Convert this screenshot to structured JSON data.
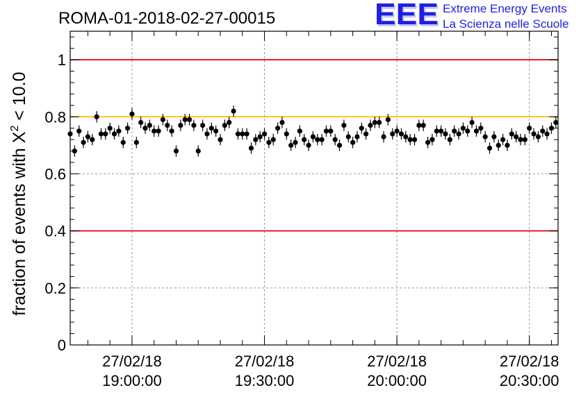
{
  "chart_data": {
    "type": "scatter",
    "title": "ROMA-01-2018-02-27-00015",
    "ylabel": "fraction of events with",
    "ylabel_math": {
      "symbol": "X",
      "superscript": "2",
      "suffix": " < 10.0"
    },
    "xlabel": "",
    "ylim": [
      0,
      1.1
    ],
    "y_ticks": [
      "0",
      "0.2",
      "0.4",
      "0.6",
      "0.8",
      "1"
    ],
    "x_ticks": [
      {
        "date": "27/02/18",
        "time": "19:00:00"
      },
      {
        "date": "27/02/18",
        "time": "19:30:00"
      },
      {
        "date": "27/02/18",
        "time": "20:00:00"
      },
      {
        "date": "27/02/18",
        "time": "20:30:00"
      }
    ],
    "x_time_range": [
      "18:46:00",
      "20:36:30"
    ],
    "x_tick_times": [
      "19:00:00",
      "19:30:00",
      "20:00:00",
      "20:30:00"
    ],
    "reference_lines": [
      {
        "y": 1.0,
        "color": "#e00000"
      },
      {
        "y": 0.8,
        "color": "#ffbb00"
      },
      {
        "y": 0.4,
        "color": "#e00000"
      }
    ],
    "grid": true,
    "marker_color": "#000000",
    "x": [
      "18:46:00",
      "18:47:00",
      "18:48:00",
      "18:49:00",
      "18:50:00",
      "18:51:00",
      "18:52:00",
      "18:53:00",
      "18:54:00",
      "18:55:00",
      "18:56:00",
      "18:57:00",
      "18:58:00",
      "18:59:00",
      "19:00:00",
      "19:01:00",
      "19:02:00",
      "19:03:00",
      "19:04:00",
      "19:05:00",
      "19:06:00",
      "19:07:00",
      "19:08:00",
      "19:09:00",
      "19:10:00",
      "19:11:00",
      "19:12:00",
      "19:13:00",
      "19:14:00",
      "19:15:00",
      "19:16:00",
      "19:17:00",
      "19:18:00",
      "19:19:00",
      "19:20:00",
      "19:21:00",
      "19:22:00",
      "19:23:00",
      "19:24:00",
      "19:25:00",
      "19:26:00",
      "19:27:00",
      "19:28:00",
      "19:29:00",
      "19:30:00",
      "19:31:00",
      "19:32:00",
      "19:33:00",
      "19:34:00",
      "19:35:00",
      "19:36:00",
      "19:37:00",
      "19:38:00",
      "19:39:00",
      "19:40:00",
      "19:41:00",
      "19:42:00",
      "19:43:00",
      "19:44:00",
      "19:45:00",
      "19:46:00",
      "19:47:00",
      "19:48:00",
      "19:49:00",
      "19:50:00",
      "19:51:00",
      "19:52:00",
      "19:53:00",
      "19:54:00",
      "19:55:00",
      "19:56:00",
      "19:57:00",
      "19:58:00",
      "19:59:00",
      "20:00:00",
      "20:01:00",
      "20:02:00",
      "20:03:00",
      "20:04:00",
      "20:05:00",
      "20:06:00",
      "20:07:00",
      "20:08:00",
      "20:09:00",
      "20:10:00",
      "20:11:00",
      "20:12:00",
      "20:13:00",
      "20:14:00",
      "20:15:00",
      "20:16:00",
      "20:17:00",
      "20:18:00",
      "20:19:00",
      "20:20:00",
      "20:21:00",
      "20:22:00",
      "20:23:00",
      "20:24:00",
      "20:25:00",
      "20:26:00",
      "20:27:00",
      "20:28:00",
      "20:29:00",
      "20:30:00",
      "20:31:00",
      "20:32:00",
      "20:33:00",
      "20:34:00",
      "20:35:00",
      "20:36:00"
    ],
    "y": [
      0.74,
      0.68,
      0.75,
      0.71,
      0.73,
      0.72,
      0.8,
      0.74,
      0.74,
      0.76,
      0.74,
      0.75,
      0.71,
      0.76,
      0.81,
      0.71,
      0.78,
      0.76,
      0.77,
      0.75,
      0.75,
      0.79,
      0.77,
      0.75,
      0.68,
      0.77,
      0.79,
      0.79,
      0.77,
      0.68,
      0.77,
      0.74,
      0.76,
      0.75,
      0.72,
      0.77,
      0.78,
      0.82,
      0.74,
      0.74,
      0.74,
      0.69,
      0.72,
      0.73,
      0.74,
      0.71,
      0.72,
      0.76,
      0.78,
      0.74,
      0.7,
      0.71,
      0.75,
      0.72,
      0.7,
      0.73,
      0.72,
      0.72,
      0.75,
      0.75,
      0.72,
      0.7,
      0.77,
      0.73,
      0.71,
      0.73,
      0.76,
      0.74,
      0.77,
      0.78,
      0.78,
      0.73,
      0.79,
      0.74,
      0.75,
      0.74,
      0.73,
      0.72,
      0.72,
      0.77,
      0.77,
      0.71,
      0.72,
      0.75,
      0.75,
      0.74,
      0.72,
      0.75,
      0.74,
      0.76,
      0.75,
      0.78,
      0.75,
      0.76,
      0.73,
      0.69,
      0.73,
      0.7,
      0.72,
      0.7,
      0.74,
      0.73,
      0.72,
      0.72,
      0.76,
      0.74,
      0.73,
      0.75,
      0.74,
      0.76,
      0.78
    ],
    "yerr": 0.02
  },
  "logo": {
    "mark": "EEE",
    "line1": "Extreme Energy Events",
    "line2": "La Scienza nelle Scuole",
    "color": "#1f1fe6"
  }
}
